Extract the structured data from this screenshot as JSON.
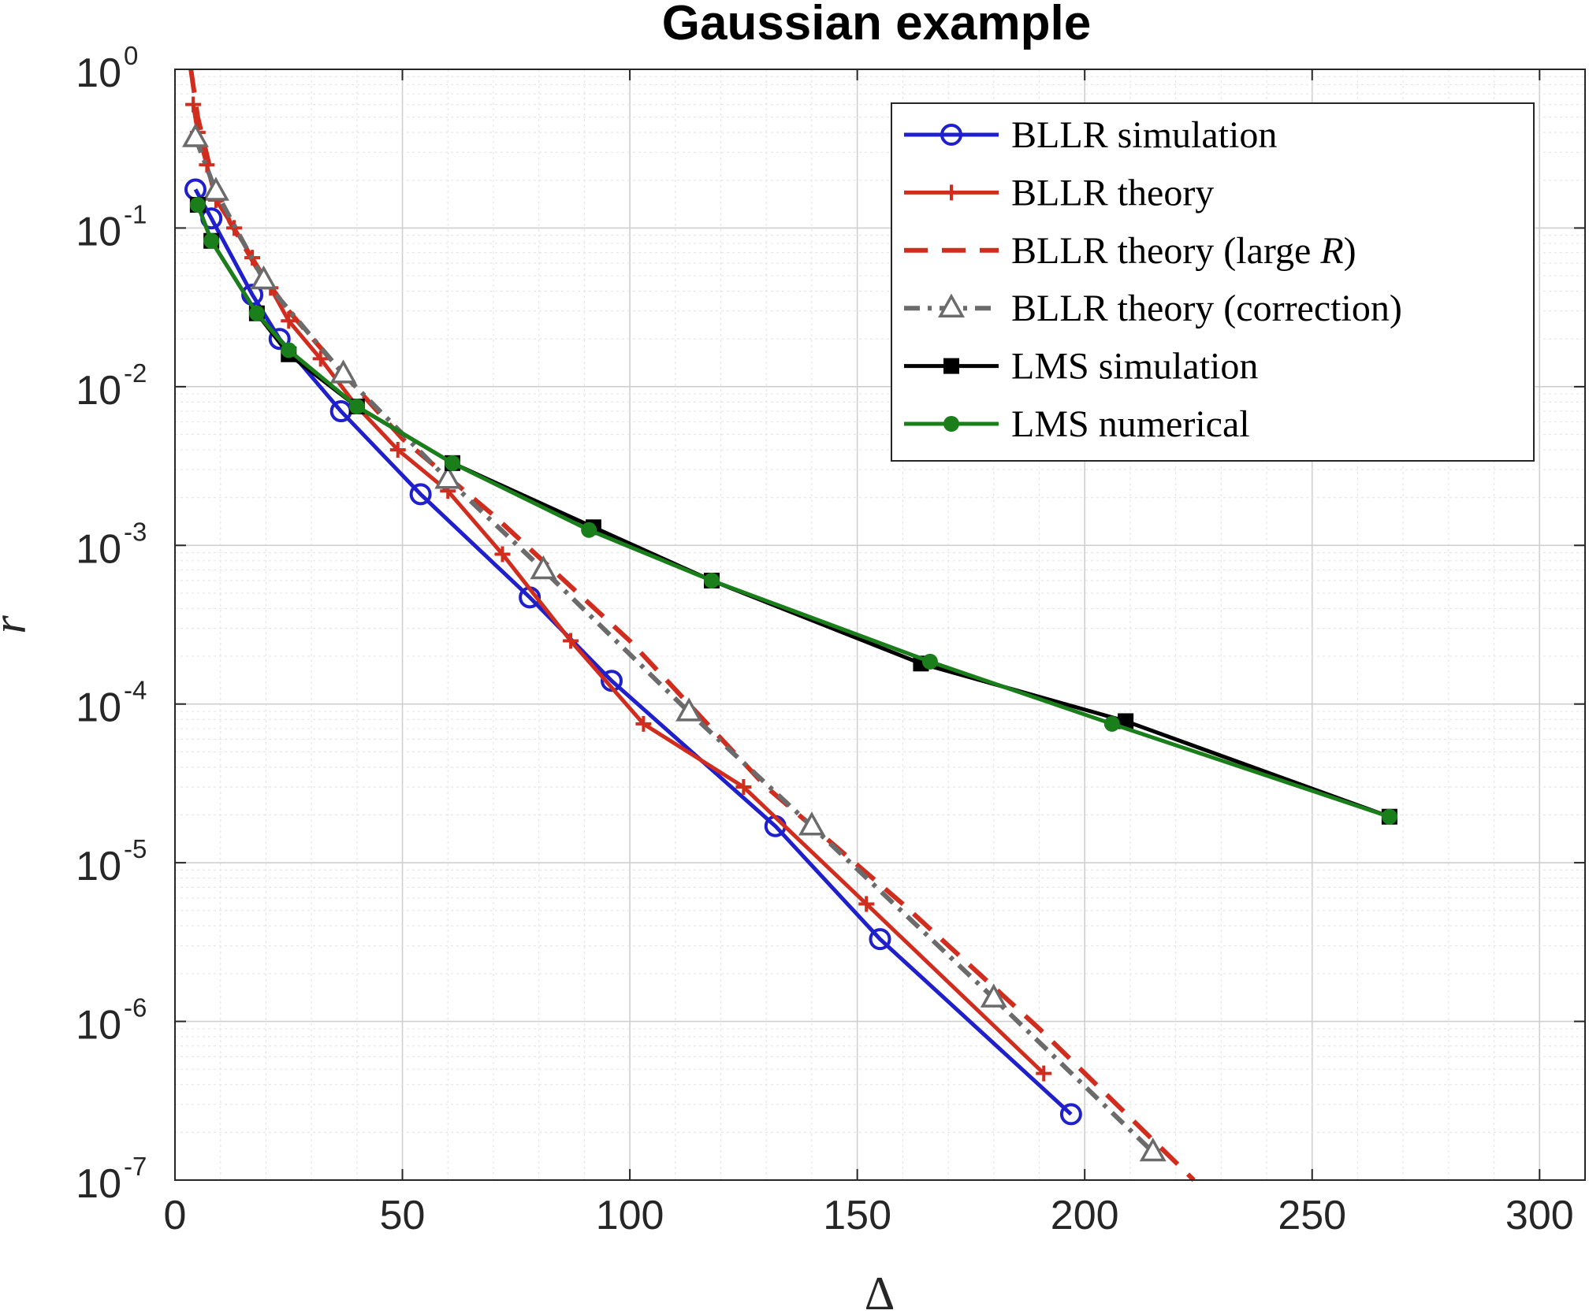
{
  "chart_data": {
    "type": "line",
    "title": "Gaussian example",
    "xlabel": "Δ",
    "ylabel": "r",
    "xlim": [
      0,
      310
    ],
    "ylim": [
      1e-07,
      1
    ],
    "yscale": "log",
    "grid": true,
    "minor_grid": true,
    "legend_position": "top-right",
    "x_ticks": [
      0,
      50,
      100,
      150,
      200,
      250,
      300
    ],
    "y_ticks": [
      {
        "base": "10",
        "exp": "0",
        "value": 1
      },
      {
        "base": "10",
        "exp": "-1",
        "value": 0.1
      },
      {
        "base": "10",
        "exp": "-2",
        "value": 0.01
      },
      {
        "base": "10",
        "exp": "-3",
        "value": 0.001
      },
      {
        "base": "10",
        "exp": "-4",
        "value": 0.0001
      },
      {
        "base": "10",
        "exp": "-5",
        "value": 1e-05
      },
      {
        "base": "10",
        "exp": "-6",
        "value": 1e-06
      },
      {
        "base": "10",
        "exp": "-7",
        "value": 1e-07
      }
    ],
    "series": [
      {
        "name": "BLLR simulation",
        "name_parts": [
          "BLLR simulation"
        ],
        "color": "#1f1fcc",
        "dash": "solid",
        "marker": "circle",
        "x": [
          4.5,
          8,
          17,
          23,
          36.5,
          54,
          78,
          96,
          132,
          155,
          197
        ],
        "y": [
          0.175,
          0.115,
          0.038,
          0.02,
          0.007,
          0.0021,
          0.00047,
          0.00014,
          1.7e-05,
          3.3e-06,
          2.6e-07
        ]
      },
      {
        "name": "BLLR theory",
        "name_parts": [
          "BLLR theory"
        ],
        "color": "#d12d1f",
        "dash": "solid",
        "marker": "plus",
        "x": [
          4,
          5,
          7,
          9,
          13,
          17,
          21,
          25,
          32,
          40,
          49,
          60,
          72,
          87,
          103,
          125,
          152,
          191
        ],
        "y": [
          0.6,
          0.4,
          0.25,
          0.15,
          0.1,
          0.065,
          0.042,
          0.026,
          0.015,
          0.0075,
          0.004,
          0.0022,
          0.00088,
          0.00025,
          7.5e-05,
          3e-05,
          5.5e-06,
          4.7e-07
        ]
      },
      {
        "name": "BLLR theory (large R)",
        "name_parts": [
          "BLLR theory (large ",
          "R",
          ")"
        ],
        "color": "#d12d1f",
        "dash": "dashed",
        "marker": "none",
        "x": [
          3.5,
          5,
          8,
          12,
          18,
          25,
          35,
          50,
          70,
          100,
          130,
          160,
          190,
          224
        ],
        "y": [
          1,
          0.5,
          0.22,
          0.11,
          0.056,
          0.03,
          0.014,
          0.0047,
          0.00155,
          0.00025,
          3e-05,
          5.5e-06,
          9e-07,
          1e-07
        ]
      },
      {
        "name": "BLLR theory (correction)",
        "name_parts": [
          "BLLR theory (correction)"
        ],
        "color": "#6b6b6b",
        "dash": "dashdot",
        "marker": "triangle",
        "x": [
          4.5,
          9,
          19.5,
          37,
          60,
          81,
          113,
          140,
          180,
          215
        ],
        "y": [
          0.37,
          0.17,
          0.047,
          0.012,
          0.0026,
          0.0007,
          8.9e-05,
          1.7e-05,
          1.4e-06,
          1.5e-07
        ]
      },
      {
        "name": "LMS simulation",
        "name_parts": [
          "LMS simulation"
        ],
        "color": "#000000",
        "dash": "solid",
        "marker": "square",
        "x": [
          5,
          8,
          18,
          25,
          40,
          61,
          92,
          118,
          164,
          209,
          267
        ],
        "y": [
          0.14,
          0.083,
          0.029,
          0.016,
          0.0075,
          0.0033,
          0.0013,
          0.0006,
          0.00018,
          7.8e-05,
          1.95e-05
        ]
      },
      {
        "name": "LMS numerical",
        "name_parts": [
          "LMS numerical"
        ],
        "color": "#1a7f1a",
        "dash": "solid",
        "marker": "dot",
        "x": [
          5,
          8,
          18,
          25,
          40,
          61,
          91,
          118,
          166,
          206,
          267
        ],
        "y": [
          0.14,
          0.083,
          0.029,
          0.017,
          0.0075,
          0.0033,
          0.00125,
          0.0006,
          0.000185,
          7.5e-05,
          1.95e-05
        ]
      }
    ]
  }
}
